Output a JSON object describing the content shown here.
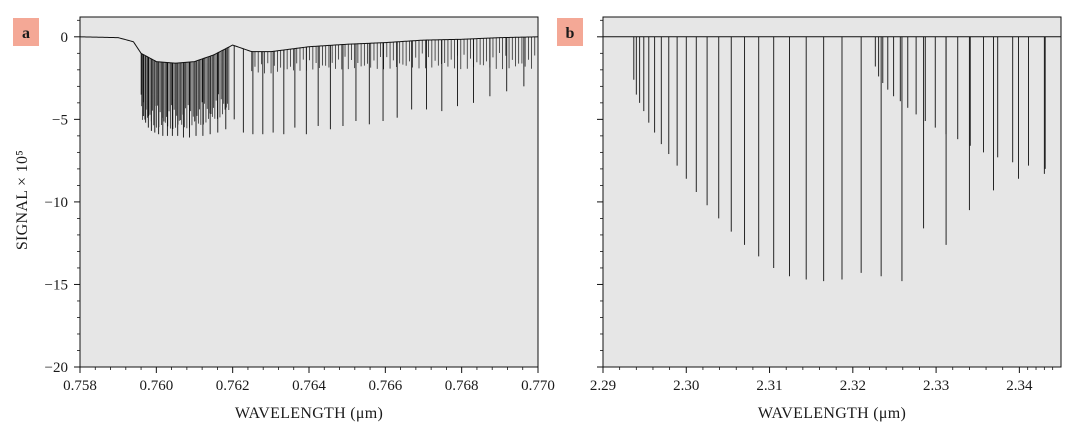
{
  "figure": {
    "panel_badge_color": "#f4a896",
    "plot_bg_color": "#e6e6e6",
    "line_color": "#111111"
  },
  "chart_data": [
    {
      "type": "line",
      "panel_label": "a",
      "xlabel": "WAVELENGTH (μm)",
      "ylabel": "SIGNAL × 10⁵",
      "xlim": [
        0.758,
        0.77
      ],
      "ylim": [
        -20,
        1.2
      ],
      "x_ticks": [
        0.758,
        0.76,
        0.762,
        0.764,
        0.766,
        0.768,
        0.77
      ],
      "x_tick_labels": [
        "0.758",
        "0.760",
        "0.762",
        "0.764",
        "0.766",
        "0.768",
        "0.770"
      ],
      "y_ticks": [
        0,
        -5,
        -10,
        -15,
        -20
      ],
      "y_tick_labels": [
        "0",
        "−5",
        "−10",
        "−15",
        "−20"
      ],
      "grid": false,
      "series": [
        {
          "baseline": [
            [
              0.758,
              0
            ],
            [
              0.759,
              -0.05
            ],
            [
              0.7594,
              -0.3
            ],
            [
              0.7596,
              -1.0
            ],
            [
              0.76,
              -1.5
            ],
            [
              0.7605,
              -1.6
            ],
            [
              0.761,
              -1.5
            ],
            [
              0.7615,
              -1.1
            ],
            [
              0.762,
              -0.5
            ],
            [
              0.7625,
              -0.9
            ],
            [
              0.763,
              -0.9
            ],
            [
              0.764,
              -0.6
            ],
            [
              0.765,
              -0.45
            ],
            [
              0.766,
              -0.35
            ],
            [
              0.767,
              -0.2
            ],
            [
              0.768,
              -0.15
            ],
            [
              0.769,
              -0.05
            ],
            [
              0.77,
              0
            ]
          ],
          "lines": [
            [
              0.75962,
              -4.2
            ],
            [
              0.75966,
              -4.8
            ],
            [
              0.75972,
              -5.2
            ],
            [
              0.75979,
              -5.5
            ],
            [
              0.75987,
              -5.7
            ],
            [
              0.75996,
              -5.8
            ],
            [
              0.76006,
              -5.9
            ],
            [
              0.76017,
              -6.0
            ],
            [
              0.76029,
              -6.0
            ],
            [
              0.76042,
              -6.0
            ],
            [
              0.76056,
              -6.0
            ],
            [
              0.76071,
              -6.1
            ],
            [
              0.76087,
              -6.1
            ],
            [
              0.76104,
              -6.0
            ],
            [
              0.76122,
              -6.0
            ],
            [
              0.76141,
              -5.9
            ],
            [
              0.76161,
              -5.8
            ],
            [
              0.76182,
              -5.6
            ],
            [
              0.76204,
              -5.0
            ],
            [
              0.76228,
              -5.8
            ],
            [
              0.76253,
              -5.9
            ],
            [
              0.76279,
              -5.9
            ],
            [
              0.76306,
              -5.8
            ],
            [
              0.76334,
              -5.9
            ],
            [
              0.76363,
              -5.5
            ],
            [
              0.76393,
              -5.9
            ],
            [
              0.76424,
              -5.4
            ],
            [
              0.76456,
              -5.6
            ],
            [
              0.76489,
              -5.4
            ],
            [
              0.76523,
              -5.1
            ],
            [
              0.76558,
              -5.3
            ],
            [
              0.76594,
              -5.1
            ],
            [
              0.76631,
              -4.9
            ],
            [
              0.76669,
              -4.4
            ],
            [
              0.76708,
              -4.4
            ],
            [
              0.76748,
              -4.5
            ],
            [
              0.76789,
              -4.2
            ],
            [
              0.76831,
              -4.0
            ],
            [
              0.76874,
              -3.6
            ],
            [
              0.76918,
              -3.3
            ],
            [
              0.76963,
              -3.0
            ]
          ],
          "dense_regions": [
            {
              "x_from": 0.7596,
              "x_to": 0.7619,
              "depth_min": -1.5,
              "depth_max": -4.0
            },
            {
              "x_from": 0.7625,
              "x_to": 0.77,
              "depth_min": -0.2,
              "depth_max": -2.0
            }
          ]
        }
      ]
    },
    {
      "type": "line",
      "panel_label": "b",
      "xlabel": "WAVELENGTH (μm)",
      "ylabel": "",
      "xlim": [
        2.29,
        2.345
      ],
      "ylim": [
        -20,
        1.2
      ],
      "x_ticks": [
        2.29,
        2.3,
        2.31,
        2.32,
        2.33,
        2.34
      ],
      "x_tick_labels": [
        "2.29",
        "2.30",
        "2.31",
        "2.32",
        "2.33",
        "2.34"
      ],
      "y_ticks": [
        0,
        -5,
        -10,
        -15,
        -20
      ],
      "y_tick_labels": [
        "",
        "",
        "",
        "",
        ""
      ],
      "grid": false,
      "series": [
        {
          "baseline": [
            [
              2.29,
              0
            ],
            [
              2.345,
              0
            ]
          ],
          "band_head": 2.2935,
          "band_head_2": 2.3225,
          "lines": [
            [
              2.2937,
              -2.6
            ],
            [
              2.294,
              -3.5
            ],
            [
              2.2944,
              -4.0
            ],
            [
              2.2949,
              -4.5
            ],
            [
              2.2955,
              -5.2
            ],
            [
              2.2962,
              -5.8
            ],
            [
              2.297,
              -6.5
            ],
            [
              2.2979,
              -7.1
            ],
            [
              2.2989,
              -7.8
            ],
            [
              2.3,
              -8.6
            ],
            [
              2.3012,
              -9.4
            ],
            [
              2.3025,
              -10.2
            ],
            [
              2.3039,
              -11.0
            ],
            [
              2.3054,
              -11.8
            ],
            [
              2.307,
              -12.6
            ],
            [
              2.3087,
              -13.3
            ],
            [
              2.3105,
              -14.0
            ],
            [
              2.3124,
              -14.5
            ],
            [
              2.3144,
              -14.7
            ],
            [
              2.3165,
              -14.8
            ],
            [
              2.3187,
              -14.7
            ],
            [
              2.321,
              -14.3
            ],
            [
              2.3234,
              -14.5
            ],
            [
              2.3259,
              -14.8
            ],
            [
              2.3285,
              -11.6
            ],
            [
              2.3312,
              -12.6
            ],
            [
              2.334,
              -10.5
            ],
            [
              2.3369,
              -9.3
            ],
            [
              2.3399,
              -8.6
            ],
            [
              2.343,
              -8.3
            ]
          ],
          "secondary_lines": [
            [
              2.3227,
              -1.8
            ],
            [
              2.3231,
              -2.4
            ],
            [
              2.3236,
              -2.8
            ],
            [
              2.3242,
              -3.2
            ],
            [
              2.3249,
              -3.6
            ],
            [
              2.3257,
              -3.9
            ],
            [
              2.3266,
              -4.3
            ],
            [
              2.3276,
              -4.7
            ],
            [
              2.3287,
              -5.1
            ],
            [
              2.3299,
              -5.5
            ],
            [
              2.3312,
              -5.9
            ],
            [
              2.3326,
              -6.2
            ],
            [
              2.3341,
              -6.6
            ],
            [
              2.3357,
              -7.0
            ],
            [
              2.3374,
              -7.3
            ],
            [
              2.3392,
              -7.6
            ],
            [
              2.3411,
              -7.8
            ],
            [
              2.3431,
              -8.0
            ]
          ]
        }
      ]
    }
  ]
}
